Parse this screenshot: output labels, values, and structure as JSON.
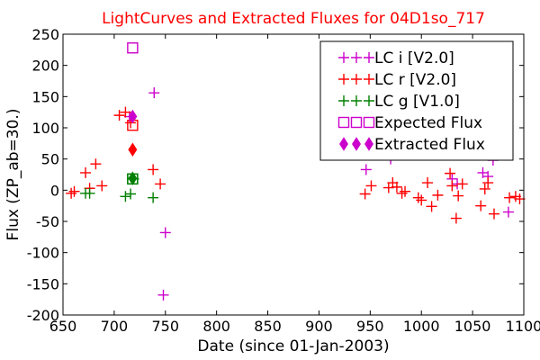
{
  "chart_data": {
    "type": "scatter",
    "title": "LightCurves and Extracted Fluxes for 04D1so_717",
    "title_color": "#ff0000",
    "xlabel": "Date (since 01-Jan-2003)",
    "ylabel": "Flux (ZP_ab=30.)",
    "xlim": [
      650,
      1100
    ],
    "ylim": [
      -200,
      250
    ],
    "xticks": [
      650,
      700,
      750,
      800,
      850,
      900,
      950,
      1000,
      1050,
      1100
    ],
    "yticks": [
      -200,
      -150,
      -100,
      -50,
      0,
      50,
      100,
      150,
      200,
      250
    ],
    "legend_position": "top-right",
    "series": [
      {
        "name": "LC i [V2.0]",
        "marker": "plus",
        "color": "#cc00cc",
        "x": [
          715,
          739,
          748,
          750,
          946,
          970,
          1030,
          1035,
          1060,
          1065,
          1070,
          1085
        ],
        "y": [
          118,
          156,
          -168,
          -68,
          33,
          50,
          18,
          10,
          28,
          22,
          48,
          -35
        ]
      },
      {
        "name": "LC r [V2.0]",
        "marker": "plus",
        "color": "#ff0000",
        "x": [
          658,
          661,
          672,
          676,
          682,
          688,
          705,
          711,
          716,
          738,
          745,
          945,
          951,
          968,
          972,
          976,
          981,
          984,
          997,
          1000,
          1006,
          1010,
          1016,
          1028,
          1030,
          1034,
          1036,
          1040,
          1058,
          1062,
          1065,
          1071,
          1086,
          1092,
          1096
        ],
        "y": [
          -5,
          -2,
          28,
          3,
          42,
          7,
          120,
          125,
          108,
          33,
          10,
          -6,
          7,
          4,
          12,
          5,
          -5,
          -2,
          -12,
          -16,
          12,
          -26,
          -8,
          27,
          7,
          -45,
          -9,
          10,
          -25,
          2,
          12,
          -38,
          -12,
          -10,
          -14
        ]
      },
      {
        "name": "LC g [V1.0]",
        "marker": "plus",
        "color": "#008000",
        "x": [
          672,
          676,
          711,
          716,
          719,
          738
        ],
        "y": [
          -5,
          -5,
          -10,
          -6,
          18,
          -12
        ]
      },
      {
        "name": "Expected Flux",
        "marker": "square",
        "color": "#cc00cc",
        "x": [
          718,
          718,
          718,
          718
        ],
        "y": [
          228,
          104,
          18,
          18
        ],
        "point_colors": [
          "#cc00cc",
          "#ff0000",
          "#008000",
          "#008000"
        ]
      },
      {
        "name": "Extracted Flux",
        "marker": "diamond",
        "color": "#cc00cc",
        "x": [
          718,
          718,
          718
        ],
        "y": [
          118,
          65,
          19
        ],
        "point_colors": [
          "#cc00cc",
          "#ff0000",
          "#008000"
        ]
      }
    ]
  }
}
